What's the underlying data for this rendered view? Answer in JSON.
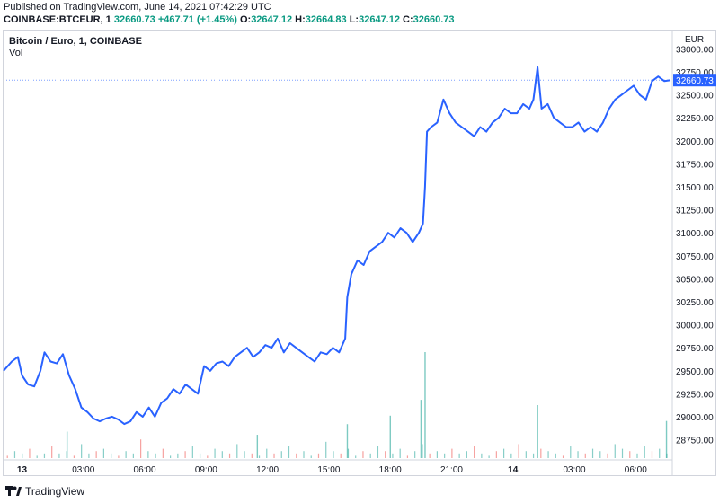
{
  "header": {
    "published": "Published on TradingView.com, June 14, 2021 07:42:29 UTC",
    "symbol": "COINBASE:BTCEUR, 1",
    "close_main": "32660.73",
    "change": "+467.71 (+1.45%)",
    "o_label": "O:",
    "o_value": "32647.12",
    "h_label": "H:",
    "h_value": "32664.83",
    "l_label": "L:",
    "l_value": "32647.12",
    "c_label": "C:",
    "c_value": "32660.73"
  },
  "legend": {
    "title": "Bitcoin / Euro, 1, COINBASE",
    "vol": "Vol"
  },
  "footer": {
    "brand": "TradingView"
  },
  "colors": {
    "line": "#2962ff",
    "up": "#26a69a",
    "down": "#ef5350",
    "grid": "#f0f3fa"
  },
  "chart_data": {
    "type": "line",
    "currency_label": "EUR",
    "last_price_label": "32660.73",
    "last_price": 32660.73,
    "y_ticks": [
      28750,
      29000,
      29250,
      29500,
      29750,
      30000,
      30250,
      30500,
      30750,
      31000,
      31250,
      31500,
      31750,
      32000,
      32250,
      32500,
      32750,
      33000
    ],
    "y_tick_labels": [
      "28750.00",
      "29000.00",
      "29250.00",
      "29500.00",
      "29750.00",
      "30000.00",
      "30250.00",
      "30500.00",
      "30750.00",
      "31000.00",
      "31250.00",
      "31500.00",
      "31750.00",
      "32000.00",
      "32250.00",
      "32500.00",
      "32750.00",
      "33000.00"
    ],
    "ylim": [
      28550,
      33200
    ],
    "x_tick_labels": [
      "13",
      "03:00",
      "06:00",
      "09:00",
      "12:00",
      "15:00",
      "18:00",
      "21:00",
      "14",
      "03:00",
      "06:00"
    ],
    "x_tick_hours": [
      0,
      3,
      6,
      9,
      12,
      15,
      18,
      21,
      24,
      27,
      30
    ],
    "xlim_hours": [
      -0.9,
      31.7
    ],
    "series": [
      {
        "points": [
          [
            -0.9,
            29500
          ],
          [
            -0.5,
            29600
          ],
          [
            -0.2,
            29650
          ],
          [
            0.0,
            29450
          ],
          [
            0.3,
            29350
          ],
          [
            0.6,
            29330
          ],
          [
            0.9,
            29500
          ],
          [
            1.1,
            29700
          ],
          [
            1.4,
            29600
          ],
          [
            1.7,
            29580
          ],
          [
            2.0,
            29680
          ],
          [
            2.3,
            29450
          ],
          [
            2.6,
            29300
          ],
          [
            2.9,
            29100
          ],
          [
            3.2,
            29050
          ],
          [
            3.5,
            28980
          ],
          [
            3.8,
            28950
          ],
          [
            4.1,
            28980
          ],
          [
            4.4,
            29000
          ],
          [
            4.7,
            28970
          ],
          [
            5.0,
            28920
          ],
          [
            5.3,
            28950
          ],
          [
            5.6,
            29050
          ],
          [
            5.9,
            29000
          ],
          [
            6.2,
            29100
          ],
          [
            6.5,
            29000
          ],
          [
            6.8,
            29150
          ],
          [
            7.1,
            29200
          ],
          [
            7.4,
            29300
          ],
          [
            7.7,
            29250
          ],
          [
            8.0,
            29350
          ],
          [
            8.3,
            29300
          ],
          [
            8.6,
            29250
          ],
          [
            8.9,
            29550
          ],
          [
            9.2,
            29500
          ],
          [
            9.5,
            29580
          ],
          [
            9.8,
            29600
          ],
          [
            10.1,
            29550
          ],
          [
            10.4,
            29650
          ],
          [
            10.7,
            29700
          ],
          [
            11.0,
            29750
          ],
          [
            11.3,
            29650
          ],
          [
            11.6,
            29700
          ],
          [
            11.9,
            29780
          ],
          [
            12.2,
            29750
          ],
          [
            12.5,
            29850
          ],
          [
            12.8,
            29700
          ],
          [
            13.1,
            29800
          ],
          [
            13.4,
            29750
          ],
          [
            13.7,
            29700
          ],
          [
            14.0,
            29650
          ],
          [
            14.3,
            29600
          ],
          [
            14.6,
            29700
          ],
          [
            14.9,
            29680
          ],
          [
            15.2,
            29750
          ],
          [
            15.5,
            29700
          ],
          [
            15.8,
            29850
          ],
          [
            15.9,
            30300
          ],
          [
            16.1,
            30550
          ],
          [
            16.4,
            30700
          ],
          [
            16.7,
            30650
          ],
          [
            17.0,
            30800
          ],
          [
            17.3,
            30850
          ],
          [
            17.6,
            30900
          ],
          [
            17.9,
            31000
          ],
          [
            18.2,
            30950
          ],
          [
            18.5,
            31050
          ],
          [
            18.8,
            31000
          ],
          [
            19.1,
            30900
          ],
          [
            19.4,
            31000
          ],
          [
            19.6,
            31100
          ],
          [
            19.7,
            31500
          ],
          [
            19.8,
            32100
          ],
          [
            20.0,
            32150
          ],
          [
            20.3,
            32200
          ],
          [
            20.6,
            32450
          ],
          [
            20.9,
            32300
          ],
          [
            21.2,
            32200
          ],
          [
            21.5,
            32150
          ],
          [
            21.8,
            32100
          ],
          [
            22.1,
            32050
          ],
          [
            22.4,
            32150
          ],
          [
            22.7,
            32100
          ],
          [
            23.0,
            32200
          ],
          [
            23.3,
            32250
          ],
          [
            23.6,
            32350
          ],
          [
            23.9,
            32300
          ],
          [
            24.2,
            32300
          ],
          [
            24.5,
            32400
          ],
          [
            24.8,
            32350
          ],
          [
            25.0,
            32450
          ],
          [
            25.2,
            32800
          ],
          [
            25.4,
            32350
          ],
          [
            25.7,
            32400
          ],
          [
            26.0,
            32250
          ],
          [
            26.3,
            32200
          ],
          [
            26.6,
            32150
          ],
          [
            26.9,
            32150
          ],
          [
            27.2,
            32200
          ],
          [
            27.5,
            32100
          ],
          [
            27.8,
            32150
          ],
          [
            28.1,
            32100
          ],
          [
            28.4,
            32200
          ],
          [
            28.7,
            32350
          ],
          [
            29.0,
            32450
          ],
          [
            29.3,
            32500
          ],
          [
            29.6,
            32550
          ],
          [
            29.9,
            32600
          ],
          [
            30.2,
            32500
          ],
          [
            30.5,
            32450
          ],
          [
            30.8,
            32650
          ],
          [
            31.1,
            32700
          ],
          [
            31.4,
            32650
          ],
          [
            31.7,
            32660
          ]
        ]
      }
    ],
    "volume": {
      "base": [
        1,
        3,
        2,
        4,
        1,
        2,
        5,
        2,
        3,
        1,
        6,
        2,
        3,
        4,
        2,
        1,
        3,
        2,
        8,
        3,
        2,
        4,
        1,
        2,
        3,
        5,
        2,
        1,
        4,
        3,
        2,
        6,
        3,
        2,
        1,
        4,
        2,
        3,
        5,
        2,
        3,
        1,
        2,
        7,
        3,
        2,
        4,
        1,
        3,
        2,
        5,
        3,
        2,
        4,
        1,
        3,
        6,
        2,
        3,
        2,
        4,
        2,
        3,
        5,
        2,
        1,
        3,
        4,
        2,
        6,
        3,
        2,
        4,
        3,
        2,
        1,
        5,
        3,
        2,
        4,
        3,
        2,
        6,
        4,
        3,
        2,
        5,
        3,
        4,
        2
      ],
      "spikes": [
        {
          "hour": 19.7,
          "value": 100
        },
        {
          "hour": 19.5,
          "value": 55
        },
        {
          "hour": 25.2,
          "value": 50
        },
        {
          "hour": 31.5,
          "value": 35
        },
        {
          "hour": 15.9,
          "value": 32
        },
        {
          "hour": 18.0,
          "value": 40
        },
        {
          "hour": 2.2,
          "value": 25
        },
        {
          "hour": 11.5,
          "value": 22
        }
      ]
    }
  }
}
